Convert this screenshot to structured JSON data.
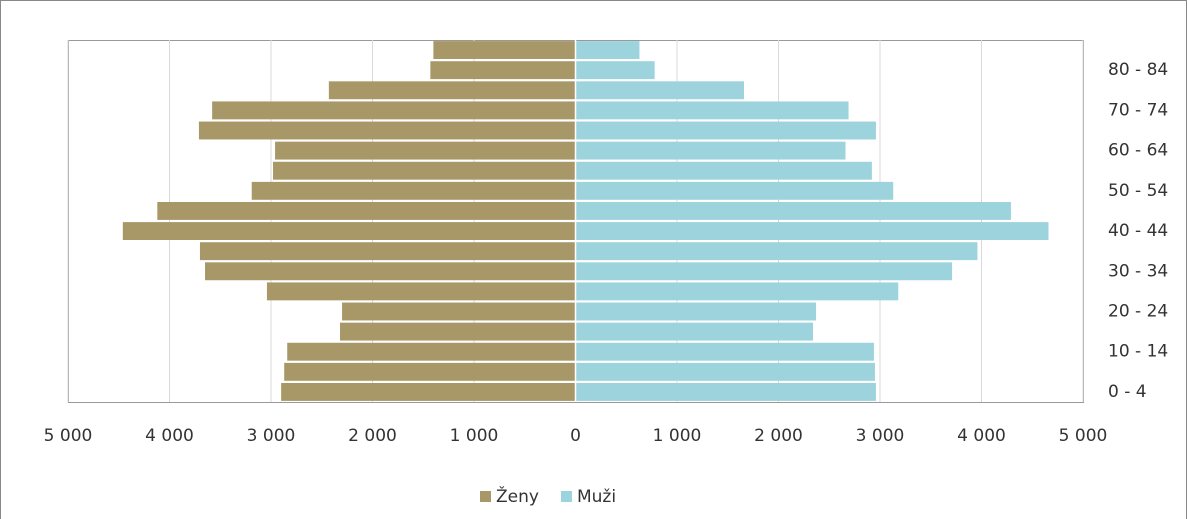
{
  "chart_data": {
    "type": "bar",
    "orientation": "horizontal",
    "categories": [
      "0 - 4",
      null,
      "10 - 14",
      null,
      "20 - 24",
      null,
      "30 - 34",
      null,
      "40 - 44",
      null,
      "50 - 54",
      null,
      "60 - 64",
      null,
      "70 - 74",
      null,
      "80 - 84",
      null
    ],
    "series": [
      {
        "name": "Ženy",
        "color": "#a89868",
        "values": [
          -2900,
          -2870,
          -2840,
          -2320,
          -2300,
          -3040,
          -3650,
          -3700,
          -4460,
          -4120,
          -3190,
          -2980,
          -2960,
          -3710,
          -3580,
          -2430,
          -1430,
          -1400
        ]
      },
      {
        "name": "Muži",
        "color": "#9dd3dc",
        "values": [
          2960,
          2950,
          2940,
          2340,
          2370,
          3180,
          3710,
          3960,
          4660,
          4290,
          3130,
          2920,
          2660,
          2960,
          2690,
          1660,
          780,
          630
        ]
      }
    ],
    "xlim": [
      -5000,
      5000
    ],
    "xticks": [
      {
        "value": -5000,
        "label": "5 000"
      },
      {
        "value": -4000,
        "label": "4 000"
      },
      {
        "value": -3000,
        "label": "3 000"
      },
      {
        "value": -2000,
        "label": "2 000"
      },
      {
        "value": -1000,
        "label": "1 000"
      },
      0,
      {
        "value": 1000,
        "label": "1 000"
      },
      {
        "value": 2000,
        "label": "2 000"
      },
      {
        "value": 3000,
        "label": "3 000"
      },
      {
        "value": 4000,
        "label": "4 000"
      },
      {
        "value": 5000,
        "label": "5 000"
      }
    ],
    "grid": true,
    "legend": "bottom"
  }
}
